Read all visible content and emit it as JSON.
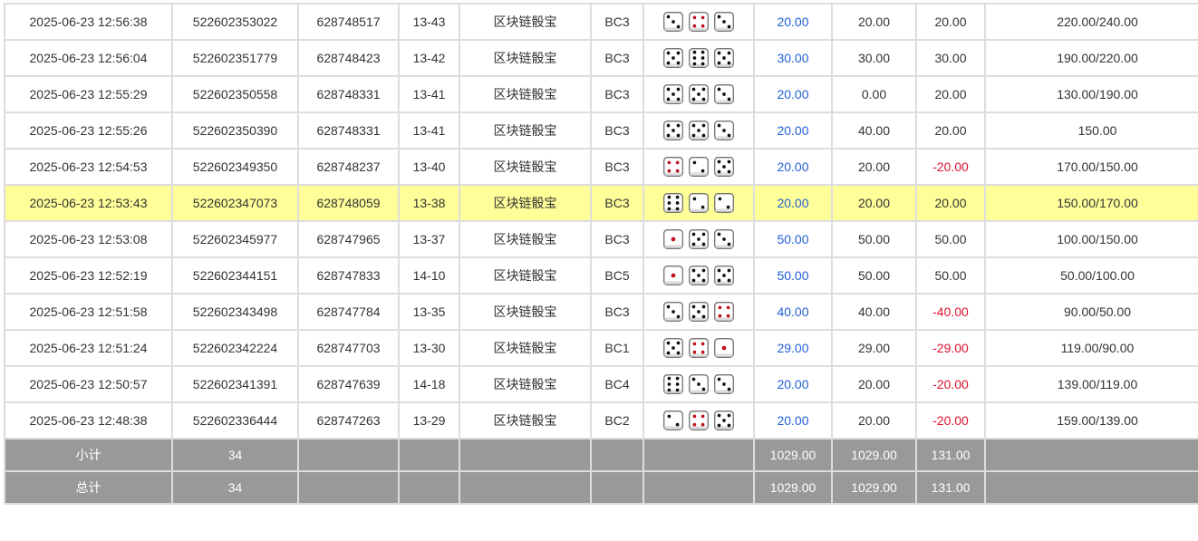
{
  "colors": {
    "bet": "#1f5fd6",
    "loss": "#e0102a",
    "highlight": "#ffff99",
    "summary_bg": "#999999"
  },
  "rows": [
    {
      "time": "2025-06-23 12:56:38",
      "order": "522602353022",
      "issue": "628748517",
      "code": "13-43",
      "game": "区块链骰宝",
      "play": "BC3",
      "dice": [
        3,
        4,
        3
      ],
      "bet": "20.00",
      "valid": "20.00",
      "win": "20.00",
      "balance": "220.00/240.00"
    },
    {
      "time": "2025-06-23 12:56:04",
      "order": "522602351779",
      "issue": "628748423",
      "code": "13-42",
      "game": "区块链骰宝",
      "play": "BC3",
      "dice": [
        5,
        6,
        5
      ],
      "bet": "30.00",
      "valid": "30.00",
      "win": "30.00",
      "balance": "190.00/220.00"
    },
    {
      "time": "2025-06-23 12:55:29",
      "order": "522602350558",
      "issue": "628748331",
      "code": "13-41",
      "game": "区块链骰宝",
      "play": "BC3",
      "dice": [
        5,
        5,
        3
      ],
      "bet": "20.00",
      "valid": "0.00",
      "win": "20.00",
      "balance": "130.00/190.00"
    },
    {
      "time": "2025-06-23 12:55:26",
      "order": "522602350390",
      "issue": "628748331",
      "code": "13-41",
      "game": "区块链骰宝",
      "play": "BC3",
      "dice": [
        5,
        5,
        3
      ],
      "bet": "20.00",
      "valid": "40.00",
      "win": "20.00",
      "balance": "150.00"
    },
    {
      "time": "2025-06-23 12:54:53",
      "order": "522602349350",
      "issue": "628748237",
      "code": "13-40",
      "game": "区块链骰宝",
      "play": "BC3",
      "dice": [
        4,
        2,
        5
      ],
      "bet": "20.00",
      "valid": "20.00",
      "win": "-20.00",
      "balance": "170.00/150.00"
    },
    {
      "time": "2025-06-23 12:53:43",
      "order": "522602347073",
      "issue": "628748059",
      "code": "13-38",
      "game": "区块链骰宝",
      "play": "BC3",
      "dice": [
        6,
        2,
        2
      ],
      "bet": "20.00",
      "valid": "20.00",
      "win": "20.00",
      "balance": "150.00/170.00",
      "highlight": true
    },
    {
      "time": "2025-06-23 12:53:08",
      "order": "522602345977",
      "issue": "628747965",
      "code": "13-37",
      "game": "区块链骰宝",
      "play": "BC3",
      "dice": [
        1,
        5,
        3
      ],
      "bet": "50.00",
      "valid": "50.00",
      "win": "50.00",
      "balance": "100.00/150.00"
    },
    {
      "time": "2025-06-23 12:52:19",
      "order": "522602344151",
      "issue": "628747833",
      "code": "14-10",
      "game": "区块链骰宝",
      "play": "BC5",
      "dice": [
        1,
        5,
        5
      ],
      "bet": "50.00",
      "valid": "50.00",
      "win": "50.00",
      "balance": "50.00/100.00"
    },
    {
      "time": "2025-06-23 12:51:58",
      "order": "522602343498",
      "issue": "628747784",
      "code": "13-35",
      "game": "区块链骰宝",
      "play": "BC3",
      "dice": [
        3,
        5,
        4
      ],
      "bet": "40.00",
      "valid": "40.00",
      "win": "-40.00",
      "balance": "90.00/50.00"
    },
    {
      "time": "2025-06-23 12:51:24",
      "order": "522602342224",
      "issue": "628747703",
      "code": "13-30",
      "game": "区块链骰宝",
      "play": "BC1",
      "dice": [
        5,
        4,
        1
      ],
      "bet": "29.00",
      "valid": "29.00",
      "win": "-29.00",
      "balance": "119.00/90.00"
    },
    {
      "time": "2025-06-23 12:50:57",
      "order": "522602341391",
      "issue": "628747639",
      "code": "14-18",
      "game": "区块链骰宝",
      "play": "BC4",
      "dice": [
        6,
        3,
        3
      ],
      "bet": "20.00",
      "valid": "20.00",
      "win": "-20.00",
      "balance": "139.00/119.00"
    },
    {
      "time": "2025-06-23 12:48:38",
      "order": "522602336444",
      "issue": "628747263",
      "code": "13-29",
      "game": "区块链骰宝",
      "play": "BC2",
      "dice": [
        2,
        4,
        5
      ],
      "bet": "20.00",
      "valid": "20.00",
      "win": "-20.00",
      "balance": "159.00/139.00"
    }
  ],
  "summary": [
    {
      "label": "小计",
      "count": "34",
      "bet": "1029.00",
      "valid": "1029.00",
      "win": "131.00"
    },
    {
      "label": "总计",
      "count": "34",
      "bet": "1029.00",
      "valid": "1029.00",
      "win": "131.00"
    }
  ]
}
